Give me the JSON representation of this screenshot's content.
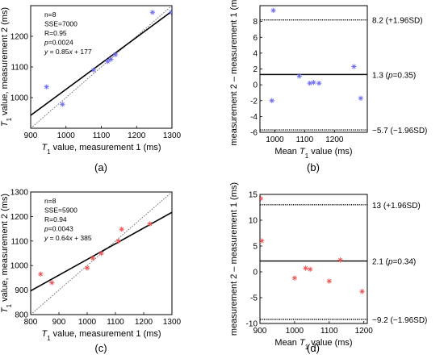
{
  "chart_data": [
    {
      "panel": "(a)",
      "type": "scatter",
      "xlabel_var": "T",
      "xlabel_sub": "1",
      "xlabel_rest": " value, measurement 1 (ms)",
      "ylabel_var": "T",
      "ylabel_sub": "1",
      "ylabel_rest": " value, measurement 2 (ms)",
      "xlim": [
        900,
        1300
      ],
      "ylim": [
        900,
        1300
      ],
      "xticks": [
        900,
        1000,
        1100,
        1200,
        1300
      ],
      "yticks": [
        1000,
        1100,
        1200
      ],
      "marker": "*",
      "marker_color": "#6f6ff0",
      "points": {
        "x": [
          945,
          990,
          1078,
          1118,
          1127,
          1140,
          1245,
          1298
        ],
        "y": [
          1035,
          978,
          1090,
          1118,
          1125,
          1140,
          1278,
          1278
        ]
      },
      "fit": {
        "slope": 0.85,
        "intercept": 177
      },
      "identity_line": true,
      "stats": [
        {
          "text": "n=8",
          "italic": false
        },
        {
          "text": "SSE=7000",
          "italic": false
        },
        {
          "text": "R=0.95",
          "italic": false
        },
        {
          "text_italic": "p",
          "text": "=0.0024"
        },
        {
          "text_italic": "y",
          "text": " = 0.85",
          "text_italic2": "x",
          "text2": " + 177"
        }
      ]
    },
    {
      "panel": "(b)",
      "type": "scatter",
      "xlabel_pre": "Mean ",
      "xlabel_var": "T",
      "xlabel_sub": "1",
      "xlabel_rest": " value (ms)",
      "ylabel": "measurement 2 – measurement 1 (ms)",
      "xlim": [
        950,
        1310
      ],
      "ylim": [
        -6,
        10
      ],
      "xticks": [
        1000,
        1100,
        1200
      ],
      "yticks": [
        -6,
        -4,
        -2,
        0,
        2,
        4,
        6,
        8
      ],
      "marker": "*",
      "marker_color": "#6f6ff0",
      "points": {
        "x": [
          990,
          995,
          1082,
          1117,
          1130,
          1148,
          1265,
          1288
        ],
        "y": [
          -2.0,
          9.4,
          1.1,
          0.2,
          0.3,
          0.2,
          2.3,
          -1.7
        ]
      },
      "mean_line": {
        "value": 1.3,
        "label": "1.3 (",
        "label_italic": "p",
        "label_rest": "=0.35)"
      },
      "upper_loa": {
        "value": 8.2,
        "label": "8.2 (+1.96SD)"
      },
      "lower_loa": {
        "value": -5.7,
        "label": "−5.7 (−1.96SD)"
      }
    },
    {
      "panel": "(c)",
      "type": "scatter",
      "xlabel_var": "T",
      "xlabel_sub": "1",
      "xlabel_rest": " value, measurement 1 (ms)",
      "ylabel_var": "T",
      "ylabel_sub": "1",
      "ylabel_rest": " value, measurement 2 (ms)",
      "xlim": [
        800,
        1300
      ],
      "ylim": [
        800,
        1300
      ],
      "xticks": [
        800,
        900,
        1000,
        1100,
        1200,
        1300
      ],
      "yticks": [
        800,
        900,
        1000,
        1100,
        1200,
        1300
      ],
      "marker": "*",
      "marker_color": "#ee5555",
      "points": {
        "x": [
          835,
          875,
          1000,
          1020,
          1050,
          1110,
          1122,
          1222
        ],
        "y": [
          965,
          930,
          990,
          1030,
          1050,
          1100,
          1148,
          1170
        ]
      },
      "fit": {
        "slope": 0.64,
        "intercept": 385
      },
      "identity_line": true,
      "stats": [
        {
          "text": "n=8",
          "italic": false
        },
        {
          "text": "SSE=5900",
          "italic": false
        },
        {
          "text": "R=0.94",
          "italic": false
        },
        {
          "text_italic": "p",
          "text": "=0.0043"
        },
        {
          "text_italic": "y",
          "text": " = 0.64",
          "text_italic2": "x",
          "text2": " + 385"
        }
      ]
    },
    {
      "panel": "(d)",
      "type": "scatter",
      "xlabel_pre": "Mean ",
      "xlabel_var": "T",
      "xlabel_sub": "1",
      "xlabel_rest": " value (ms)",
      "ylabel": "measurement 2 – measurement 1 (ms)",
      "xlim": [
        900,
        1210
      ],
      "ylim": [
        -10,
        15
      ],
      "xticks": [
        900,
        1000,
        1100,
        1200
      ],
      "yticks": [
        -10,
        -5,
        0,
        5,
        10,
        15
      ],
      "marker": "*",
      "marker_color": "#ee5555",
      "points": {
        "x": [
          902,
          905,
          1000,
          1032,
          1045,
          1100,
          1132,
          1195
        ],
        "y": [
          14.2,
          6.0,
          -1.2,
          0.7,
          0.5,
          -1.8,
          2.3,
          -3.8
        ]
      },
      "mean_line": {
        "value": 2.1,
        "label": "2.1 (",
        "label_italic": "p",
        "label_rest": "=0.34)"
      },
      "upper_loa": {
        "value": 13,
        "label": "13 (+1.96SD)"
      },
      "lower_loa": {
        "value": -9.2,
        "label": "−9.2 (−1.96SD)"
      }
    }
  ]
}
